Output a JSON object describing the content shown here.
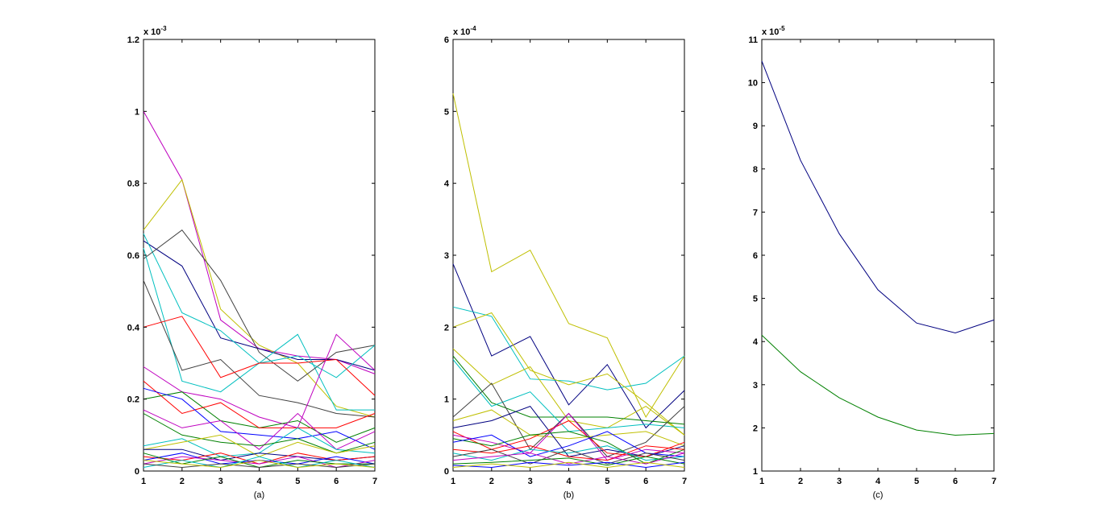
{
  "chart_data": [
    {
      "type": "line",
      "caption": "(a)",
      "exponent_label": "x 10",
      "exponent_power": "-3",
      "xlim": [
        1,
        7
      ],
      "ylim": [
        0,
        1.2
      ],
      "x_ticks": [
        "1",
        "2",
        "3",
        "4",
        "5",
        "6",
        "7"
      ],
      "y_ticks": [
        "0",
        "0.2",
        "0.4",
        "0.6",
        "0.8",
        "1",
        "1.2"
      ],
      "x": [
        1,
        2,
        3,
        4,
        5,
        6,
        7
      ],
      "series": [
        {
          "color": "#bf00bf",
          "values": [
            1.0,
            0.81,
            0.42,
            0.34,
            0.32,
            0.31,
            0.27
          ]
        },
        {
          "color": "#bfbf00",
          "values": [
            0.67,
            0.81,
            0.45,
            0.35,
            0.3,
            0.18,
            0.15
          ]
        },
        {
          "color": "#000080",
          "values": [
            0.64,
            0.57,
            0.37,
            0.34,
            0.31,
            0.31,
            0.28
          ]
        },
        {
          "color": "#00bfbf",
          "values": [
            0.66,
            0.44,
            0.39,
            0.3,
            0.38,
            0.17,
            0.17
          ]
        },
        {
          "color": "#404040",
          "values": [
            0.59,
            0.67,
            0.53,
            0.33,
            0.25,
            0.33,
            0.35
          ]
        },
        {
          "color": "#00bfbf",
          "values": [
            0.62,
            0.25,
            0.22,
            0.3,
            0.32,
            0.26,
            0.35
          ]
        },
        {
          "color": "#404040",
          "values": [
            0.53,
            0.28,
            0.31,
            0.21,
            0.19,
            0.16,
            0.15
          ]
        },
        {
          "color": "#ff0000",
          "values": [
            0.4,
            0.43,
            0.26,
            0.3,
            0.3,
            0.31,
            0.21
          ]
        },
        {
          "color": "#bf00bf",
          "values": [
            0.29,
            0.22,
            0.2,
            0.15,
            0.12,
            0.38,
            0.28
          ]
        },
        {
          "color": "#008000",
          "values": [
            0.2,
            0.22,
            0.14,
            0.12,
            0.14,
            0.08,
            0.12
          ]
        },
        {
          "color": "#ff0000",
          "values": [
            0.25,
            0.16,
            0.19,
            0.12,
            0.12,
            0.12,
            0.16
          ]
        },
        {
          "color": "#0000ff",
          "values": [
            0.23,
            0.2,
            0.11,
            0.1,
            0.09,
            0.11,
            0.06
          ]
        },
        {
          "color": "#bf00bf",
          "values": [
            0.17,
            0.12,
            0.14,
            0.06,
            0.16,
            0.06,
            0.11
          ]
        },
        {
          "color": "#00bfbf",
          "values": [
            0.07,
            0.09,
            0.04,
            0.05,
            0.12,
            0.06,
            0.05
          ]
        },
        {
          "color": "#008000",
          "values": [
            0.16,
            0.1,
            0.08,
            0.07,
            0.09,
            0.05,
            0.08
          ]
        },
        {
          "color": "#bfbf00",
          "values": [
            0.06,
            0.08,
            0.1,
            0.04,
            0.08,
            0.05,
            0.07
          ]
        },
        {
          "color": "#000080",
          "values": [
            0.06,
            0.06,
            0.03,
            0.05,
            0.04,
            0.03,
            0.04
          ]
        },
        {
          "color": "#ff0000",
          "values": [
            0.04,
            0.03,
            0.05,
            0.02,
            0.05,
            0.03,
            0.04
          ]
        },
        {
          "color": "#0000ff",
          "values": [
            0.03,
            0.05,
            0.02,
            0.03,
            0.02,
            0.04,
            0.02
          ]
        },
        {
          "color": "#bf00bf",
          "values": [
            0.02,
            0.04,
            0.03,
            0.02,
            0.04,
            0.01,
            0.03
          ]
        },
        {
          "color": "#008000",
          "values": [
            0.05,
            0.02,
            0.04,
            0.01,
            0.03,
            0.02,
            0.02
          ]
        },
        {
          "color": "#00bfbf",
          "values": [
            0.01,
            0.03,
            0.01,
            0.04,
            0.01,
            0.03,
            0.01
          ]
        },
        {
          "color": "#404040",
          "values": [
            0.02,
            0.01,
            0.02,
            0.01,
            0.02,
            0.01,
            0.02
          ]
        },
        {
          "color": "#bfbf00",
          "values": [
            0.03,
            0.02,
            0.01,
            0.03,
            0.01,
            0.02,
            0.01
          ]
        }
      ]
    },
    {
      "type": "line",
      "caption": "(b)",
      "exponent_label": "x 10",
      "exponent_power": "-4",
      "xlim": [
        1,
        7
      ],
      "ylim": [
        0,
        6
      ],
      "x_ticks": [
        "1",
        "2",
        "3",
        "4",
        "5",
        "6",
        "7"
      ],
      "y_ticks": [
        "0",
        "1",
        "2",
        "3",
        "4",
        "5",
        "6"
      ],
      "x": [
        1,
        2,
        3,
        4,
        5,
        6,
        7
      ],
      "series": [
        {
          "color": "#bfbf00",
          "values": [
            5.25,
            2.77,
            3.07,
            2.05,
            1.85,
            0.75,
            1.6
          ]
        },
        {
          "color": "#000080",
          "values": [
            2.88,
            1.6,
            1.87,
            0.92,
            1.48,
            0.6,
            1.12
          ]
        },
        {
          "color": "#00bfbf",
          "values": [
            2.28,
            2.15,
            1.28,
            1.25,
            1.13,
            1.22,
            1.6
          ]
        },
        {
          "color": "#bfbf00",
          "values": [
            2.0,
            2.2,
            1.4,
            1.2,
            1.35,
            0.95,
            0.5
          ]
        },
        {
          "color": "#bfbf00",
          "values": [
            1.7,
            1.2,
            1.45,
            0.7,
            0.6,
            0.9,
            0.5
          ]
        },
        {
          "color": "#008000",
          "values": [
            1.6,
            0.95,
            0.75,
            0.75,
            0.75,
            0.7,
            0.65
          ]
        },
        {
          "color": "#00bfbf",
          "values": [
            1.55,
            0.9,
            1.1,
            0.55,
            0.6,
            0.65,
            0.6
          ]
        },
        {
          "color": "#404040",
          "values": [
            0.75,
            1.22,
            0.3,
            0.8,
            0.2,
            0.4,
            0.9
          ]
        },
        {
          "color": "#bfbf00",
          "values": [
            0.7,
            0.85,
            0.5,
            0.45,
            0.5,
            0.55,
            0.35
          ]
        },
        {
          "color": "#000080",
          "values": [
            0.6,
            0.7,
            0.9,
            0.2,
            0.3,
            0.2,
            0.35
          ]
        },
        {
          "color": "#ff0000",
          "values": [
            0.55,
            0.3,
            0.45,
            0.7,
            0.25,
            0.2,
            0.4
          ]
        },
        {
          "color": "#bf00bf",
          "values": [
            0.5,
            0.4,
            0.25,
            0.8,
            0.15,
            0.3,
            0.25
          ]
        },
        {
          "color": "#008000",
          "values": [
            0.45,
            0.35,
            0.5,
            0.55,
            0.4,
            0.1,
            0.3
          ]
        },
        {
          "color": "#0000ff",
          "values": [
            0.4,
            0.5,
            0.2,
            0.35,
            0.55,
            0.25,
            0.2
          ]
        },
        {
          "color": "#ff0000",
          "values": [
            0.3,
            0.25,
            0.35,
            0.2,
            0.15,
            0.35,
            0.3
          ]
        },
        {
          "color": "#00bfbf",
          "values": [
            0.25,
            0.15,
            0.3,
            0.25,
            0.35,
            0.15,
            0.2
          ]
        },
        {
          "color": "#404040",
          "values": [
            0.2,
            0.3,
            0.1,
            0.3,
            0.1,
            0.25,
            0.15
          ]
        },
        {
          "color": "#bf00bf",
          "values": [
            0.15,
            0.2,
            0.25,
            0.1,
            0.2,
            0.1,
            0.25
          ]
        },
        {
          "color": "#008000",
          "values": [
            0.1,
            0.12,
            0.15,
            0.18,
            0.08,
            0.2,
            0.1
          ]
        },
        {
          "color": "#0000ff",
          "values": [
            0.08,
            0.05,
            0.12,
            0.08,
            0.12,
            0.05,
            0.12
          ]
        },
        {
          "color": "#bfbf00",
          "values": [
            0.05,
            0.1,
            0.05,
            0.12,
            0.05,
            0.12,
            0.05
          ]
        }
      ]
    },
    {
      "type": "line",
      "caption": "(c)",
      "exponent_label": "x 10",
      "exponent_power": "-5",
      "xlim": [
        1,
        7
      ],
      "ylim": [
        1,
        11
      ],
      "x_ticks": [
        "1",
        "2",
        "3",
        "4",
        "5",
        "6",
        "7"
      ],
      "y_ticks": [
        "1",
        "2",
        "3",
        "4",
        "5",
        "6",
        "7",
        "8",
        "9",
        "10",
        "11"
      ],
      "x": [
        1,
        2,
        3,
        4,
        5,
        6,
        7
      ],
      "series": [
        {
          "color": "#000080",
          "values": [
            10.5,
            8.2,
            6.5,
            5.2,
            4.43,
            4.2,
            4.5
          ]
        },
        {
          "color": "#008000",
          "values": [
            4.15,
            3.3,
            2.7,
            2.25,
            1.95,
            1.83,
            1.87
          ]
        }
      ]
    }
  ]
}
